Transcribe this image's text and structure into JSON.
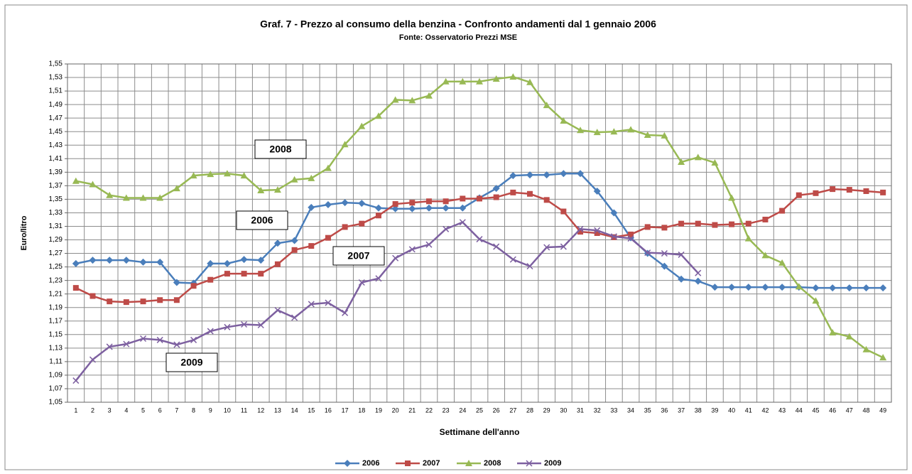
{
  "chart_data": {
    "type": "line",
    "title": "Graf. 7 - Prezzo al consumo della benzina - Confronto andamenti dal 1 gennaio 2006",
    "subtitle": "Fonte: Osservatorio Prezzi MSE",
    "x_label": "Settimane dell'anno",
    "y_label": "Euro/litro",
    "categories": [
      "1",
      "2",
      "3",
      "4",
      "5",
      "6",
      "7",
      "8",
      "9",
      "10",
      "11",
      "12",
      "13",
      "14",
      "15",
      "16",
      "17",
      "18",
      "19",
      "20",
      "21",
      "22",
      "23",
      "24",
      "25",
      "26",
      "27",
      "28",
      "29",
      "30",
      "31",
      "32",
      "33",
      "34",
      "35",
      "36",
      "37",
      "38",
      "39",
      "40",
      "41",
      "42",
      "43",
      "44",
      "45",
      "46",
      "47",
      "48",
      "49"
    ],
    "ylim": [
      1.05,
      1.55
    ],
    "yticks": [
      {
        "value": 1.05,
        "label": "1,05"
      },
      {
        "value": 1.07,
        "label": "1,07"
      },
      {
        "value": 1.09,
        "label": "1,09"
      },
      {
        "value": 1.11,
        "label": "1,11"
      },
      {
        "value": 1.13,
        "label": "1,13"
      },
      {
        "value": 1.15,
        "label": "1,15"
      },
      {
        "value": 1.17,
        "label": "1,17"
      },
      {
        "value": 1.19,
        "label": "1,19"
      },
      {
        "value": 1.21,
        "label": "1,21"
      },
      {
        "value": 1.23,
        "label": "1,23"
      },
      {
        "value": 1.25,
        "label": "1,25"
      },
      {
        "value": 1.27,
        "label": "1,27"
      },
      {
        "value": 1.29,
        "label": "1,29"
      },
      {
        "value": 1.31,
        "label": "1,31"
      },
      {
        "value": 1.33,
        "label": "1,33"
      },
      {
        "value": 1.35,
        "label": "1,35"
      },
      {
        "value": 1.37,
        "label": "1,37"
      },
      {
        "value": 1.39,
        "label": "1,39"
      },
      {
        "value": 1.41,
        "label": "1,41"
      },
      {
        "value": 1.43,
        "label": "1,43"
      },
      {
        "value": 1.45,
        "label": "1,45"
      },
      {
        "value": 1.47,
        "label": "1,47"
      },
      {
        "value": 1.49,
        "label": "1,49"
      },
      {
        "value": 1.51,
        "label": "1,51"
      },
      {
        "value": 1.53,
        "label": "1,53"
      },
      {
        "value": 1.55,
        "label": "1,55"
      }
    ],
    "grid": true,
    "legend": "bottom",
    "annotations": [
      "2008",
      "2006",
      "2007",
      "2009"
    ],
    "series": [
      {
        "name": "2006",
        "color": "#4a7ebb",
        "marker": "diamond",
        "values": [
          1.255,
          1.26,
          1.26,
          1.26,
          1.257,
          1.257,
          1.227,
          1.226,
          1.255,
          1.255,
          1.261,
          1.26,
          1.285,
          1.289,
          1.338,
          1.342,
          1.345,
          1.344,
          1.337,
          1.336,
          1.336,
          1.337,
          1.337,
          1.337,
          1.352,
          1.366,
          1.385,
          1.386,
          1.386,
          1.388,
          1.388,
          1.362,
          1.33,
          1.293,
          1.27,
          1.251,
          1.232,
          1.229,
          1.22,
          1.22,
          1.22,
          1.22,
          1.22,
          1.22,
          1.219,
          1.219,
          1.219,
          1.219,
          1.219
        ]
      },
      {
        "name": "2007",
        "color": "#be4b48",
        "marker": "square",
        "values": [
          1.219,
          1.207,
          1.199,
          1.198,
          1.199,
          1.201,
          1.201,
          1.222,
          1.231,
          1.24,
          1.24,
          1.24,
          1.254,
          1.275,
          1.281,
          1.293,
          1.309,
          1.314,
          1.326,
          1.343,
          1.345,
          1.347,
          1.347,
          1.351,
          1.351,
          1.353,
          1.36,
          1.358,
          1.349,
          1.332,
          1.302,
          1.3,
          1.294,
          1.298,
          1.309,
          1.308,
          1.314,
          1.314,
          1.312,
          1.313,
          1.314,
          1.32,
          1.333,
          1.356,
          1.359,
          1.365,
          1.364,
          1.362,
          1.36
        ]
      },
      {
        "name": "2008",
        "color": "#98b954",
        "marker": "triangle",
        "values": [
          1.377,
          1.372,
          1.356,
          1.352,
          1.352,
          1.352,
          1.366,
          1.385,
          1.387,
          1.388,
          1.385,
          1.363,
          1.364,
          1.379,
          1.381,
          1.396,
          1.431,
          1.458,
          1.473,
          1.497,
          1.496,
          1.503,
          1.524,
          1.524,
          1.524,
          1.528,
          1.531,
          1.523,
          1.489,
          1.466,
          1.452,
          1.449,
          1.45,
          1.453,
          1.445,
          1.444,
          1.405,
          1.412,
          1.404,
          1.352,
          1.292,
          1.267,
          1.256,
          1.221,
          1.2,
          1.153,
          1.147,
          1.128,
          1.116
        ]
      },
      {
        "name": "2009",
        "color": "#7d60a0",
        "marker": "x",
        "values": [
          1.082,
          1.113,
          1.132,
          1.136,
          1.144,
          1.142,
          1.135,
          1.142,
          1.155,
          1.161,
          1.165,
          1.164,
          1.186,
          1.175,
          1.195,
          1.197,
          1.182,
          1.227,
          1.233,
          1.263,
          1.276,
          1.283,
          1.306,
          1.316,
          1.291,
          1.28,
          1.261,
          1.251,
          1.279,
          1.28,
          1.306,
          1.304,
          1.295,
          1.292,
          1.271,
          1.27,
          1.268,
          1.241,
          null,
          null,
          null,
          null,
          null,
          null,
          null,
          null,
          null,
          null,
          null
        ]
      }
    ]
  }
}
